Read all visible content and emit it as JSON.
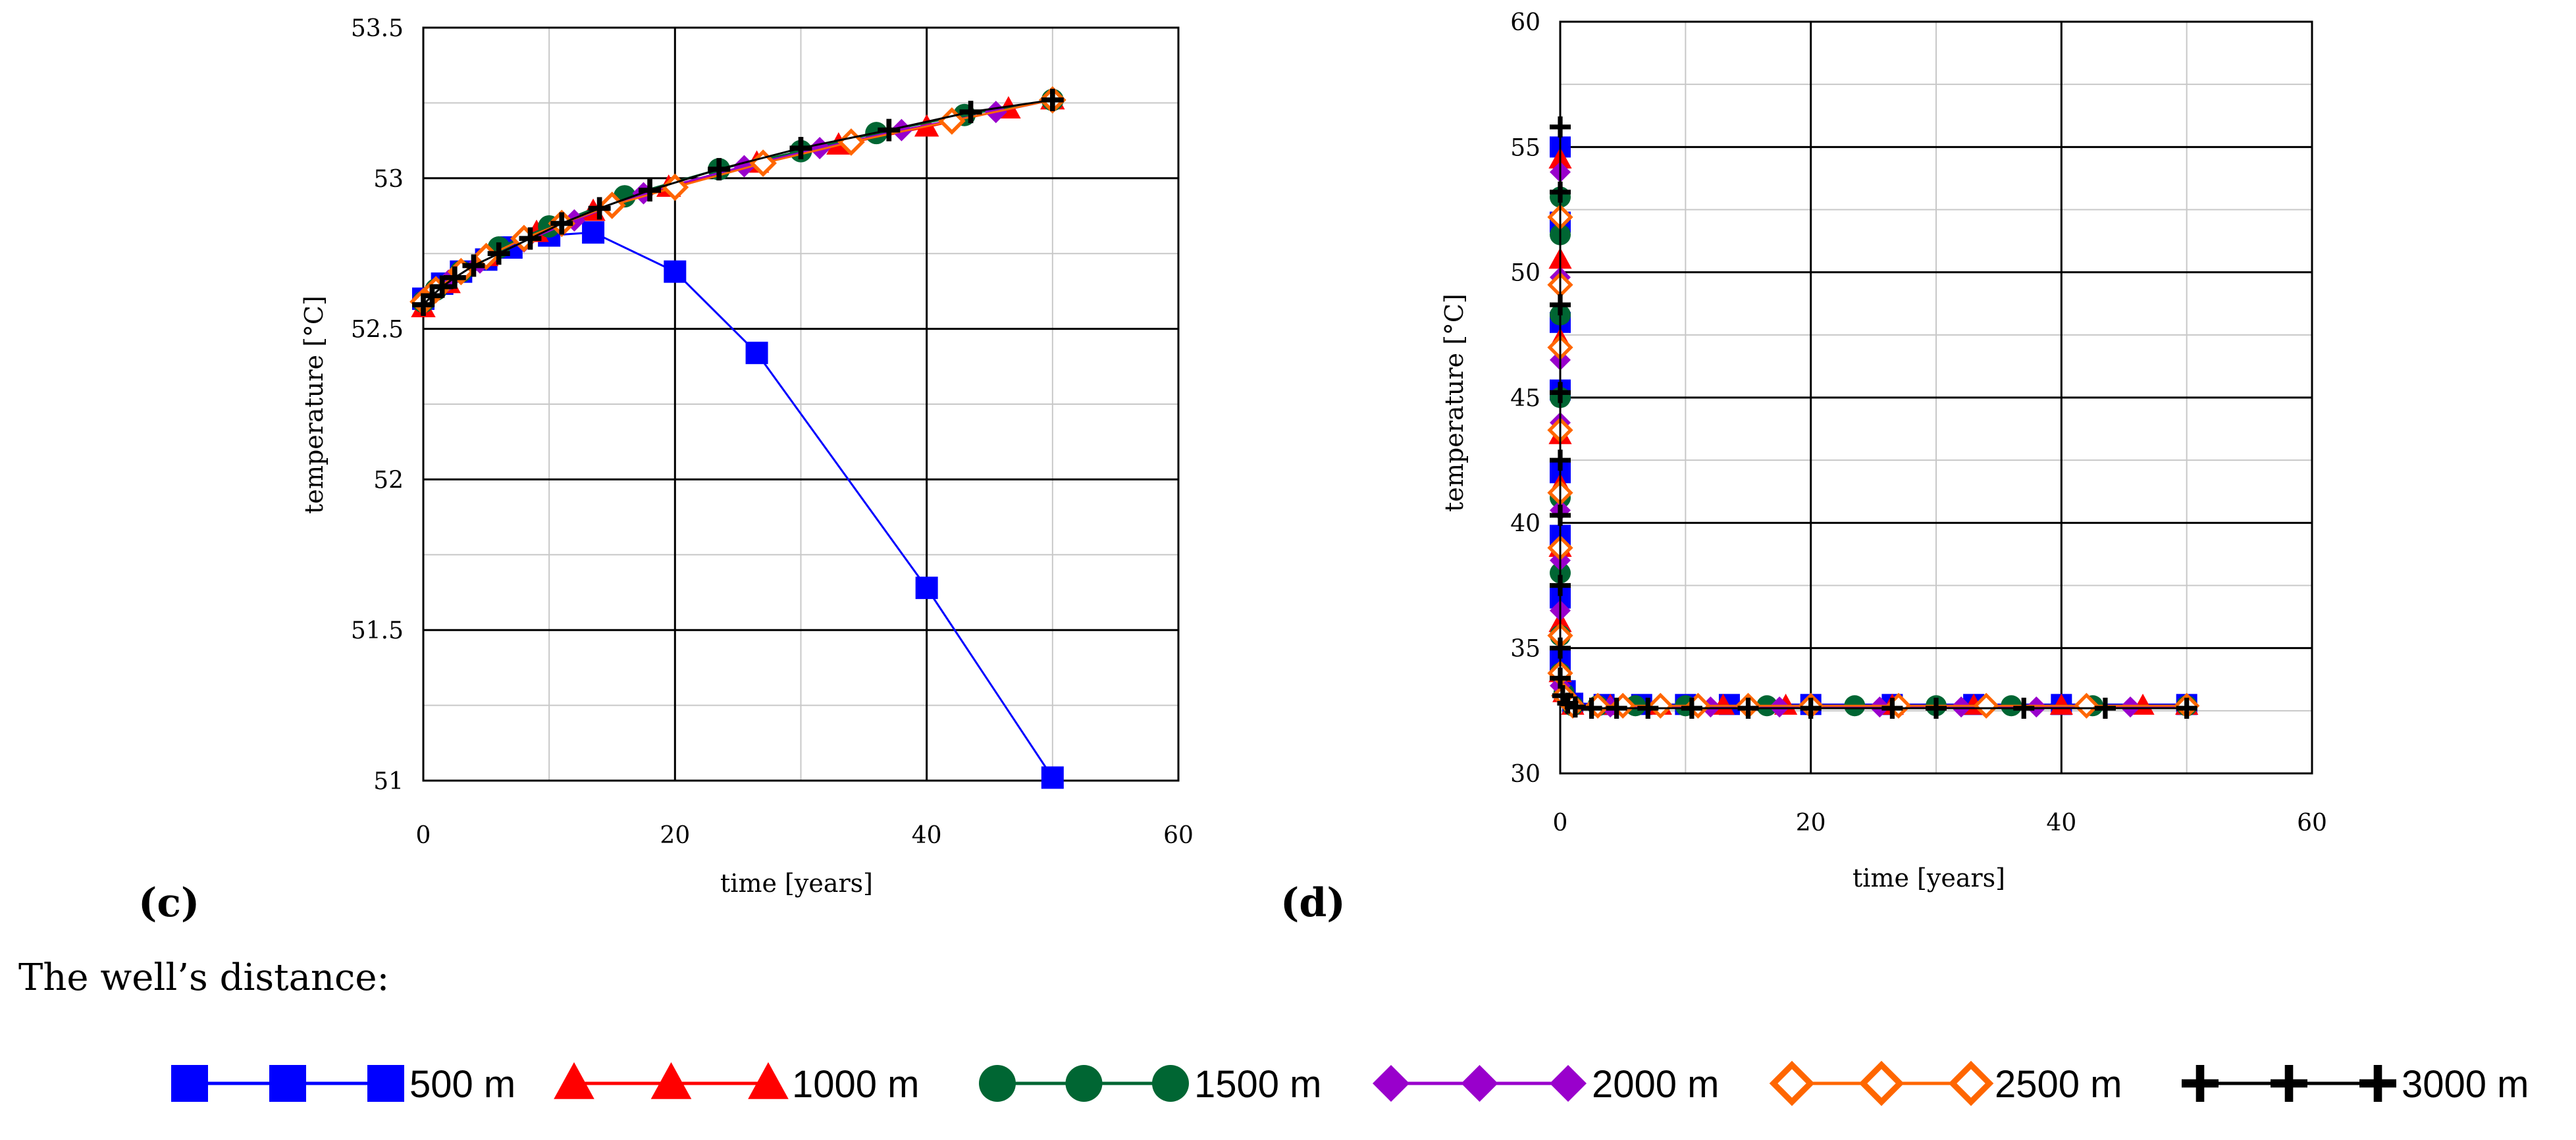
{
  "chart_data": [
    {
      "type": "line",
      "panel_label": "(c)",
      "xlabel": "time [years]",
      "ylabel": "temperature [°C]",
      "xlim": [
        0,
        60
      ],
      "ylim": [
        51,
        53.5
      ],
      "xticks": [
        0,
        20,
        40,
        60
      ],
      "yticks": [
        51,
        51.5,
        52,
        52.5,
        53,
        53.5
      ],
      "xtick_labels": [
        "0",
        "20",
        "40",
        "60"
      ],
      "ytick_labels": [
        "51",
        "51.5",
        "52",
        "52.5",
        "53",
        "53.5"
      ],
      "grid": true,
      "series": [
        {
          "name": "500 m",
          "x": [
            0,
            1.5,
            3,
            5,
            7,
            10,
            13.5,
            20,
            26.5,
            40,
            50
          ],
          "y": [
            52.6,
            52.65,
            52.69,
            52.73,
            52.77,
            52.81,
            52.82,
            52.69,
            52.42,
            51.64,
            51.01
          ]
        },
        {
          "name": "1000 m",
          "x": [
            0,
            2,
            5,
            9,
            13.5,
            19.5,
            26.5,
            33,
            40,
            46.5,
            50
          ],
          "y": [
            52.57,
            52.65,
            52.74,
            52.82,
            52.89,
            52.97,
            53.05,
            53.11,
            53.17,
            53.23,
            53.26
          ]
        },
        {
          "name": "1500 m",
          "x": [
            0,
            1,
            3,
            6,
            10,
            16,
            23.5,
            30,
            36,
            43,
            50
          ],
          "y": [
            52.59,
            52.63,
            52.69,
            52.77,
            52.84,
            52.94,
            53.03,
            53.09,
            53.15,
            53.21,
            53.26
          ]
        },
        {
          "name": "2000 m",
          "x": [
            0,
            2,
            4.5,
            8,
            12,
            17.5,
            25.5,
            31.5,
            38,
            45.5,
            50
          ],
          "y": [
            52.6,
            52.66,
            52.72,
            52.79,
            52.86,
            52.95,
            53.04,
            53.1,
            53.16,
            53.22,
            53.26
          ]
        },
        {
          "name": "2500 m",
          "x": [
            0,
            1,
            3,
            5,
            8,
            11,
            15,
            20,
            27,
            34,
            42,
            50
          ],
          "y": [
            52.59,
            52.63,
            52.69,
            52.74,
            52.8,
            52.85,
            52.91,
            52.97,
            53.05,
            53.12,
            53.19,
            53.26
          ]
        },
        {
          "name": "3000 m",
          "x": [
            0,
            0.7,
            1.5,
            2.5,
            4,
            6,
            8.5,
            11,
            14,
            18,
            23.5,
            30,
            37,
            43.5,
            50
          ],
          "y": [
            52.58,
            52.61,
            52.64,
            52.67,
            52.71,
            52.75,
            52.8,
            52.85,
            52.9,
            52.96,
            53.03,
            53.1,
            53.16,
            53.22,
            53.26
          ]
        }
      ]
    },
    {
      "type": "line",
      "panel_label": "(d)",
      "xlabel": "time [years]",
      "ylabel": "temperature [°C]",
      "xlim": [
        0,
        60
      ],
      "ylim": [
        30,
        60
      ],
      "xticks": [
        0,
        20,
        40,
        60
      ],
      "yticks": [
        30,
        35,
        40,
        45,
        50,
        55,
        60
      ],
      "xtick_labels": [
        "0",
        "20",
        "40",
        "60"
      ],
      "ytick_labels": [
        "30",
        "35",
        "40",
        "45",
        "50",
        "55",
        "60"
      ],
      "grid": true,
      "series": [
        {
          "name": "500 m",
          "x": [
            0,
            0,
            0,
            0,
            0,
            0,
            0,
            0,
            0.4,
            1,
            3.5,
            6.5,
            10,
            13.5,
            20,
            26.5,
            33,
            40,
            50
          ],
          "y": [
            55,
            52,
            48,
            45.3,
            42,
            39.5,
            37,
            34.5,
            33.3,
            32.8,
            32.75,
            32.75,
            32.75,
            32.75,
            32.75,
            32.75,
            32.75,
            32.75,
            32.75
          ]
        },
        {
          "name": "1000 m",
          "x": [
            0,
            0,
            0,
            0,
            0,
            0,
            0,
            0,
            0.3,
            1,
            4,
            8,
            13,
            18,
            26.5,
            33,
            40,
            46.5,
            50
          ],
          "y": [
            54.5,
            50.5,
            47.3,
            43.5,
            41.5,
            39,
            36,
            34,
            33.2,
            32.7,
            32.7,
            32.7,
            32.7,
            32.7,
            32.7,
            32.7,
            32.7,
            32.7,
            32.7
          ]
        },
        {
          "name": "1500 m",
          "x": [
            0,
            0,
            0,
            0,
            0,
            0,
            0,
            0,
            0.3,
            1,
            3,
            6,
            10,
            16.5,
            23.5,
            30,
            36,
            42.5,
            50
          ],
          "y": [
            53,
            51.5,
            48.3,
            45,
            41,
            38,
            35.5,
            34,
            33.2,
            32.7,
            32.7,
            32.7,
            32.7,
            32.7,
            32.7,
            32.7,
            32.7,
            32.7,
            32.7
          ]
        },
        {
          "name": "2000 m",
          "x": [
            0,
            0,
            0,
            0,
            0,
            0,
            0,
            0,
            0.3,
            1,
            4,
            8,
            12,
            17.5,
            25.5,
            32,
            38,
            45.5,
            50
          ],
          "y": [
            54,
            49.8,
            46.5,
            44,
            40.5,
            38.5,
            36.5,
            33.5,
            33,
            32.65,
            32.65,
            32.65,
            32.65,
            32.65,
            32.65,
            32.65,
            32.65,
            32.65,
            32.65
          ]
        },
        {
          "name": "2500 m",
          "x": [
            0,
            0,
            0,
            0,
            0,
            0,
            0,
            0,
            0.3,
            1,
            3,
            5,
            8,
            11,
            15,
            20,
            27,
            34,
            42,
            50
          ],
          "y": [
            52.2,
            49.5,
            47,
            43.7,
            41.2,
            39,
            35.5,
            34,
            33.1,
            32.7,
            32.7,
            32.7,
            32.7,
            32.7,
            32.7,
            32.7,
            32.7,
            32.7,
            32.7,
            32.7
          ]
        },
        {
          "name": "3000 m",
          "x": [
            0,
            0,
            0,
            0,
            0,
            0,
            0,
            0,
            0,
            0.2,
            0.6,
            1.2,
            2.5,
            4.5,
            7,
            10.5,
            15,
            20,
            26.5,
            30,
            37,
            43.5,
            50
          ],
          "y": [
            55.8,
            53.2,
            48.7,
            45.2,
            42.5,
            40.3,
            37.5,
            35,
            33.8,
            33.1,
            32.8,
            32.65,
            32.6,
            32.6,
            32.6,
            32.6,
            32.6,
            32.6,
            32.6,
            32.6,
            32.6,
            32.6,
            32.6
          ]
        }
      ]
    }
  ],
  "caption": "The well’s distance:",
  "legend": [
    {
      "label": "500 m",
      "color": "#0000ff",
      "marker": "square"
    },
    {
      "label": "1000 m",
      "color": "#ff0000",
      "marker": "triangle"
    },
    {
      "label": "1500 m",
      "color": "#006633",
      "marker": "circle"
    },
    {
      "label": "2000 m",
      "color": "#9900cc",
      "marker": "diamond"
    },
    {
      "label": "2500 m",
      "color": "#ff6600",
      "marker": "open-diamond"
    },
    {
      "label": "3000 m",
      "color": "#000000",
      "marker": "plus"
    }
  ]
}
